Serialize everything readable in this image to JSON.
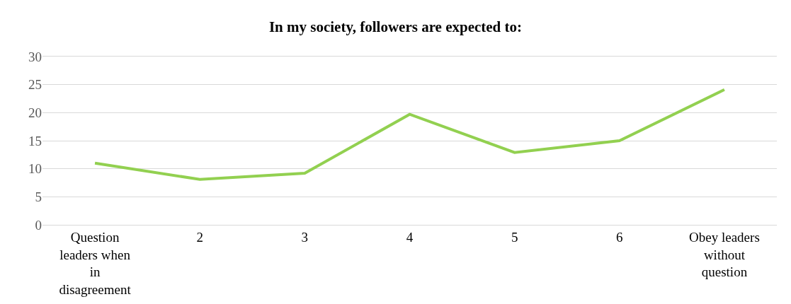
{
  "chart_data": {
    "type": "line",
    "title": "In my society, followers are expected to:",
    "categories": [
      "Question leaders when in disagreement",
      "2",
      "3",
      "4",
      "5",
      "6",
      "Obey leaders without question"
    ],
    "series": [
      {
        "color": "#92d050",
        "values": [
          11.0,
          8.1,
          9.2,
          19.7,
          12.9,
          15.0,
          24.1
        ]
      }
    ],
    "ylim": [
      0,
      30
    ],
    "yticks": [
      0,
      5,
      10,
      15,
      20,
      25,
      30
    ],
    "grid": "y",
    "legend": false,
    "marker": "none",
    "line_style": "solid"
  }
}
